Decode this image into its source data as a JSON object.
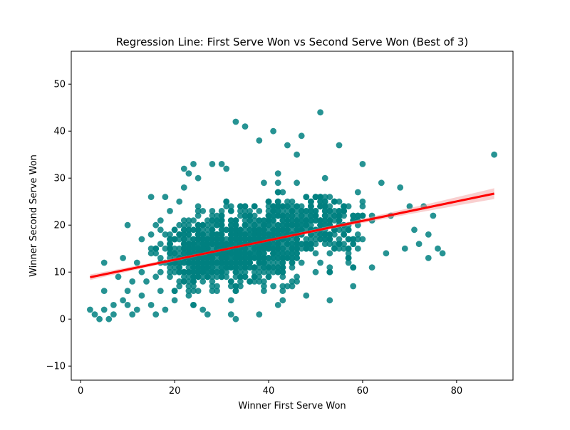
{
  "chart_data": {
    "type": "scatter",
    "title": "Regression Line: First Serve Won vs Second Serve Won (Best of 3)",
    "xlabel": "Winner First Serve Won",
    "ylabel": "Winner Second Serve Won",
    "xlim": [
      -2,
      92
    ],
    "ylim": [
      -13,
      57
    ],
    "xticks": [
      0,
      20,
      40,
      60,
      80
    ],
    "yticks": [
      -10,
      0,
      10,
      20,
      30,
      40,
      50
    ],
    "grid": false,
    "legend": "none",
    "colors": {
      "points": "#008080",
      "regression": "#ff0000",
      "ci_band": "#f4a0a0"
    },
    "regression_line": {
      "x": [
        2,
        88
      ],
      "y": [
        8.9,
        26.7
      ]
    },
    "series": [
      {
        "points": [
          [
            2,
            2
          ],
          [
            3,
            1
          ],
          [
            4,
            0
          ],
          [
            5,
            12
          ],
          [
            5,
            6
          ],
          [
            5,
            2
          ],
          [
            6,
            0
          ],
          [
            7,
            3
          ],
          [
            7,
            1
          ],
          [
            8,
            9
          ],
          [
            9,
            4
          ],
          [
            9,
            13
          ],
          [
            10,
            20
          ],
          [
            10,
            6
          ],
          [
            10,
            3
          ],
          [
            11,
            8
          ],
          [
            11,
            1
          ],
          [
            12,
            12
          ],
          [
            12,
            2
          ],
          [
            13,
            17
          ],
          [
            13,
            10
          ],
          [
            13,
            5
          ],
          [
            14,
            8
          ],
          [
            15,
            26
          ],
          [
            15,
            15
          ],
          [
            15,
            3
          ],
          [
            16,
            1
          ],
          [
            17,
            21
          ],
          [
            17,
            13
          ],
          [
            17,
            6
          ],
          [
            18,
            26
          ],
          [
            18,
            2
          ],
          [
            19,
            23
          ],
          [
            19,
            16
          ],
          [
            20,
            4
          ],
          [
            21,
            25
          ],
          [
            22,
            32
          ],
          [
            22,
            28
          ],
          [
            23,
            31
          ],
          [
            23,
            5
          ],
          [
            24,
            33
          ],
          [
            24,
            3
          ],
          [
            25,
            30
          ],
          [
            26,
            2
          ],
          [
            27,
            1
          ],
          [
            28,
            33
          ],
          [
            30,
            33
          ],
          [
            31,
            32
          ],
          [
            32,
            1
          ],
          [
            33,
            0
          ],
          [
            33,
            42
          ],
          [
            35,
            41
          ],
          [
            38,
            38
          ],
          [
            38,
            1
          ],
          [
            41,
            40
          ],
          [
            42,
            3
          ],
          [
            44,
            37
          ],
          [
            46,
            35
          ],
          [
            47,
            39
          ],
          [
            48,
            5
          ],
          [
            51,
            44
          ],
          [
            53,
            4
          ],
          [
            55,
            37
          ],
          [
            58,
            7
          ],
          [
            60,
            33
          ],
          [
            62,
            11
          ],
          [
            64,
            29
          ],
          [
            65,
            14
          ],
          [
            66,
            22
          ],
          [
            68,
            28
          ],
          [
            69,
            15
          ],
          [
            70,
            24
          ],
          [
            71,
            19
          ],
          [
            72,
            16
          ],
          [
            73,
            24
          ],
          [
            74,
            13
          ],
          [
            74,
            18
          ],
          [
            75,
            22
          ],
          [
            76,
            15
          ],
          [
            77,
            14
          ],
          [
            88,
            35
          ]
        ],
        "dense_regions": [
          {
            "x_center": 33,
            "y_center": 15,
            "x_spread": 11,
            "y_spread": 6,
            "count": 700
          },
          {
            "x_center": 45,
            "y_center": 20,
            "x_spread": 8,
            "y_spread": 6,
            "count": 320
          },
          {
            "x_center": 25,
            "y_center": 13,
            "x_spread": 6,
            "y_spread": 6,
            "count": 250
          },
          {
            "x_center": 55,
            "y_center": 20,
            "x_spread": 6,
            "y_spread": 6,
            "count": 140
          }
        ]
      }
    ]
  }
}
